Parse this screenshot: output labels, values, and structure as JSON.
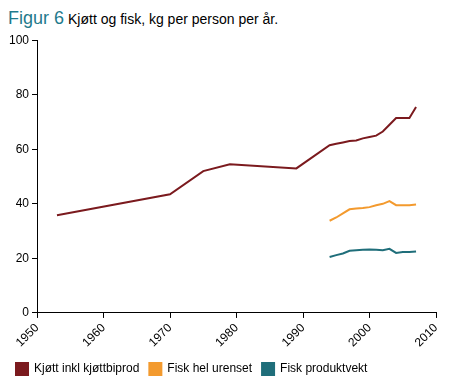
{
  "chart_data": {
    "type": "line",
    "title": "Figur 6",
    "subtitle": "Kjøtt og fisk, kg per person per år.",
    "x": [
      1953,
      1970,
      1975,
      1979,
      1989,
      1994,
      1995,
      1996,
      1997,
      1998,
      1999,
      2000,
      2001,
      2002,
      2003,
      2004,
      2005,
      2006,
      2007
    ],
    "series": [
      {
        "name": "Kjøtt inkl kjøttbiprod",
        "color": "#7b1a1e",
        "values": [
          35.8,
          43.5,
          52,
          54.5,
          53,
          61.5,
          62,
          62.5,
          63,
          63.2,
          64,
          64.5,
          65,
          66.5,
          69,
          71.5,
          71.5,
          71.5,
          75.5
        ]
      },
      {
        "name": "Fisk hel urenset",
        "color": "#f39a2e",
        "values": [
          null,
          null,
          null,
          null,
          null,
          33.8,
          35,
          36.5,
          38,
          38.3,
          38.5,
          38.8,
          39.5,
          40,
          41,
          39.5,
          39.5,
          39.5,
          39.8
        ]
      },
      {
        "name": "Fisk produktvekt",
        "color": "#1f6e7a",
        "values": [
          null,
          null,
          null,
          null,
          null,
          20.5,
          21.2,
          21.8,
          22.8,
          23,
          23.2,
          23.3,
          23.2,
          23,
          23.5,
          22,
          22.3,
          22.3,
          22.5
        ]
      }
    ],
    "xlim": [
      1950,
      2010
    ],
    "xticks": [
      1950,
      1960,
      1970,
      1980,
      1990,
      2000,
      2010
    ],
    "ylim": [
      0,
      100
    ],
    "yticks": [
      0,
      20,
      40,
      60,
      80,
      100
    ],
    "grid": false,
    "legend": "bottom"
  }
}
